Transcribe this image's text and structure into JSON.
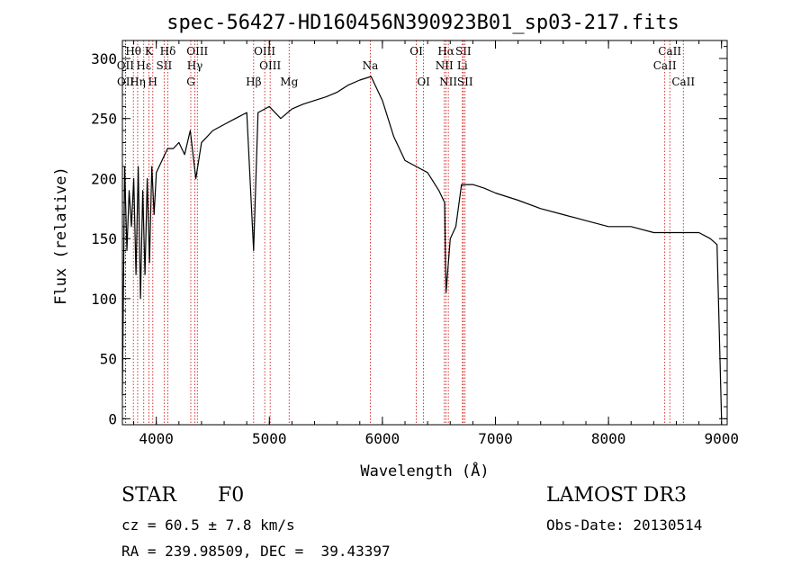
{
  "chart_data": {
    "type": "line",
    "title": "spec-56427-HD160456N390923B01_sp03-217.fits",
    "xlabel": "Wavelength (Å)",
    "ylabel": "Flux (relative)",
    "xlim": [
      3700,
      9050
    ],
    "ylim": [
      -5,
      315
    ],
    "xticks": [
      4000,
      5000,
      6000,
      7000,
      8000,
      9000
    ],
    "yticks": [
      0,
      50,
      100,
      150,
      200,
      250,
      300
    ],
    "line_color": "#000000",
    "marker_color": "#cc0000",
    "series": [
      {
        "x": [
          3700,
          3720,
          3740,
          3760,
          3780,
          3800,
          3820,
          3840,
          3860,
          3880,
          3900,
          3920,
          3940,
          3960,
          3980,
          4000,
          4050,
          4100,
          4150,
          4200,
          4250,
          4300,
          4350,
          4400,
          4450,
          4500,
          4600,
          4700,
          4800,
          4861,
          4900,
          5000,
          5100,
          5200,
          5300,
          5400,
          5500,
          5600,
          5700,
          5800,
          5900,
          5950,
          6000,
          6100,
          6200,
          6300,
          6400,
          6500,
          6550,
          6563,
          6600,
          6650,
          6700,
          6750,
          6800,
          6900,
          7000,
          7200,
          7400,
          7600,
          7800,
          8000,
          8200,
          8400,
          8600,
          8800,
          8900,
          8960,
          9000
        ],
        "y": [
          20,
          210,
          140,
          190,
          160,
          200,
          120,
          210,
          100,
          190,
          120,
          200,
          130,
          210,
          170,
          205,
          215,
          225,
          225,
          230,
          220,
          240,
          200,
          230,
          235,
          240,
          245,
          250,
          255,
          140,
          255,
          260,
          250,
          258,
          262,
          265,
          268,
          272,
          278,
          282,
          285,
          275,
          265,
          235,
          215,
          210,
          205,
          190,
          180,
          105,
          150,
          160,
          195,
          195,
          195,
          192,
          188,
          182,
          175,
          170,
          165,
          160,
          160,
          155,
          155,
          155,
          150,
          145,
          0
        ]
      }
    ],
    "line_markers": [
      {
        "label": "Hθ",
        "x": 3797,
        "row": 0
      },
      {
        "label": "OII",
        "x": 3727,
        "row": 1
      },
      {
        "label": "OII",
        "x": 3729,
        "row": 2
      },
      {
        "label": "K",
        "x": 3934,
        "row": 0
      },
      {
        "label": "Hε",
        "x": 3889,
        "row": 1
      },
      {
        "label": "Hη",
        "x": 3835,
        "row": 2
      },
      {
        "label": "SII",
        "x": 4069,
        "row": 1
      },
      {
        "label": "H",
        "x": 3969,
        "row": 2
      },
      {
        "label": "Hδ",
        "x": 4102,
        "row": 0
      },
      {
        "label": "OIII",
        "x": 4363,
        "row": 0
      },
      {
        "label": "Hγ",
        "x": 4341,
        "row": 1
      },
      {
        "label": "G",
        "x": 4305,
        "row": 2
      },
      {
        "label": "OIII",
        "x": 4959,
        "row": 0
      },
      {
        "label": "OIII",
        "x": 5007,
        "row": 1
      },
      {
        "label": "Hβ",
        "x": 4861,
        "row": 2
      },
      {
        "label": "Mg",
        "x": 5175,
        "row": 2
      },
      {
        "label": "Na",
        "x": 5893,
        "row": 1
      },
      {
        "label": "OI",
        "x": 6300,
        "row": 0
      },
      {
        "label": "OI",
        "x": 6364,
        "row": 2
      },
      {
        "label": "Hα",
        "x": 6563,
        "row": 0
      },
      {
        "label": "NII",
        "x": 6548,
        "row": 1
      },
      {
        "label": "NII",
        "x": 6583,
        "row": 2
      },
      {
        "label": "SII",
        "x": 6716,
        "row": 0
      },
      {
        "label": "Li",
        "x": 6708,
        "row": 1
      },
      {
        "label": "SII",
        "x": 6731,
        "row": 2
      },
      {
        "label": "CaII",
        "x": 8542,
        "row": 0
      },
      {
        "label": "CaII",
        "x": 8498,
        "row": 1
      },
      {
        "label": "CaII",
        "x": 8662,
        "row": 2
      }
    ]
  },
  "info": {
    "object_class": "STAR",
    "subclass": "F0",
    "survey": "LAMOST DR3",
    "cz": "cz = 60.5 ± 7.8 km/s",
    "obs_date": "Obs-Date: 20130514",
    "coords": "RA = 239.98509, DEC =  39.43397"
  }
}
